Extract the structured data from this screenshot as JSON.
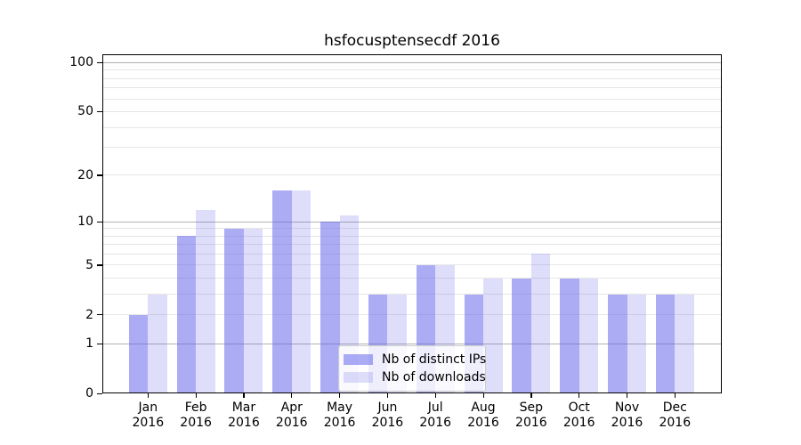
{
  "title": "hsfocusptensecdf 2016",
  "chart_data": {
    "type": "bar",
    "title": "hsfocusptensecdf 2016",
    "x": [
      {
        "month": "Jan",
        "year": "2016"
      },
      {
        "month": "Feb",
        "year": "2016"
      },
      {
        "month": "Mar",
        "year": "2016"
      },
      {
        "month": "Apr",
        "year": "2016"
      },
      {
        "month": "May",
        "year": "2016"
      },
      {
        "month": "Jun",
        "year": "2016"
      },
      {
        "month": "Jul",
        "year": "2016"
      },
      {
        "month": "Aug",
        "year": "2016"
      },
      {
        "month": "Sep",
        "year": "2016"
      },
      {
        "month": "Oct",
        "year": "2016"
      },
      {
        "month": "Nov",
        "year": "2016"
      },
      {
        "month": "Dec",
        "year": "2016"
      }
    ],
    "series": [
      {
        "name": "Nb of distinct IPs",
        "values": [
          2,
          8,
          9,
          16,
          10,
          3,
          5,
          3,
          4,
          4,
          3,
          3
        ],
        "color": "#5A5AEB",
        "alpha": 0.5,
        "swatch_color": "#ACACF5"
      },
      {
        "name": "Nb of downloads",
        "values": [
          3,
          12,
          9,
          16,
          11,
          3,
          5,
          4,
          6,
          4,
          3,
          3
        ],
        "color": "#5A5AEB",
        "alpha": 0.2,
        "swatch_color": "#DEDEFA"
      }
    ],
    "y_axis": {
      "scale": "log1p",
      "tick_values": [
        0,
        1,
        2,
        5,
        10,
        20,
        50,
        100
      ],
      "tick_labels": [
        "0",
        "1",
        "2",
        "5",
        "10",
        "20",
        "50",
        "100"
      ],
      "major_gridlines": [
        1,
        10,
        100
      ],
      "minor_gridlines": [
        2,
        3,
        4,
        5,
        6,
        7,
        8,
        9,
        20,
        30,
        40,
        50,
        60,
        70,
        80,
        90
      ],
      "ylim": [
        0,
        113
      ]
    },
    "legend": {
      "location": "lower center",
      "entries": [
        "Nb of distinct IPs",
        "Nb of downloads"
      ]
    },
    "grid": true
  },
  "colors": {
    "major_grid": "#b2b2b2",
    "minor_grid": "#e6e6e6",
    "axis": "#000000",
    "text": "#000000",
    "legend_border": "#cccccc",
    "legend_background": "#ffffff"
  }
}
